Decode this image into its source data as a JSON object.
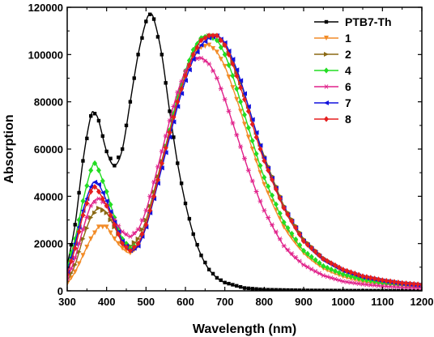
{
  "chart_data": {
    "type": "line",
    "xlabel": "Wavelength (nm)",
    "ylabel": "Absorption",
    "xlim": [
      300,
      1200
    ],
    "ylim": [
      0,
      120000
    ],
    "x_ticks": [
      300,
      400,
      500,
      600,
      700,
      800,
      900,
      1000,
      1100,
      1200
    ],
    "y_ticks": [
      0,
      20000,
      40000,
      60000,
      80000,
      100000,
      120000
    ],
    "x_tick_labels": [
      "300",
      "400",
      "500",
      "600",
      "700",
      "800",
      "900",
      "1000",
      "1100",
      "1200"
    ],
    "y_tick_labels": [
      "0",
      "20000",
      "40000",
      "60000",
      "80000",
      "100000",
      "120000"
    ],
    "legend_position": "top-right",
    "grid": false,
    "series": [
      {
        "name": "PTB7-Th",
        "color": "#000000",
        "marker": "square",
        "points": [
          [
            300,
            11000
          ],
          [
            320,
            28000
          ],
          [
            340,
            55000
          ],
          [
            360,
            74000
          ],
          [
            370,
            75000
          ],
          [
            380,
            72000
          ],
          [
            400,
            59000
          ],
          [
            420,
            53000
          ],
          [
            440,
            60000
          ],
          [
            460,
            80000
          ],
          [
            480,
            100000
          ],
          [
            500,
            114000
          ],
          [
            510,
            117000
          ],
          [
            520,
            115000
          ],
          [
            540,
            100000
          ],
          [
            560,
            76000
          ],
          [
            580,
            54000
          ],
          [
            600,
            37000
          ],
          [
            620,
            24000
          ],
          [
            640,
            15000
          ],
          [
            660,
            9000
          ],
          [
            680,
            5500
          ],
          [
            700,
            3500
          ],
          [
            750,
            1200
          ],
          [
            800,
            500
          ],
          [
            900,
            200
          ],
          [
            1000,
            100
          ],
          [
            1100,
            50
          ],
          [
            1200,
            0
          ]
        ]
      },
      {
        "name": "1",
        "color": "#F28C28",
        "marker": "triangle-down",
        "points": [
          [
            300,
            3000
          ],
          [
            320,
            8000
          ],
          [
            340,
            15000
          ],
          [
            360,
            22000
          ],
          [
            380,
            27000
          ],
          [
            400,
            27000
          ],
          [
            420,
            22000
          ],
          [
            440,
            18000
          ],
          [
            460,
            16000
          ],
          [
            480,
            19000
          ],
          [
            500,
            27000
          ],
          [
            520,
            39000
          ],
          [
            540,
            53000
          ],
          [
            560,
            67000
          ],
          [
            580,
            80000
          ],
          [
            600,
            91000
          ],
          [
            620,
            99000
          ],
          [
            640,
            103000
          ],
          [
            660,
            104000
          ],
          [
            680,
            101000
          ],
          [
            700,
            95000
          ],
          [
            720,
            86000
          ],
          [
            740,
            76000
          ],
          [
            760,
            65000
          ],
          [
            780,
            55000
          ],
          [
            800,
            45000
          ],
          [
            850,
            27000
          ],
          [
            900,
            16000
          ],
          [
            950,
            9500
          ],
          [
            1000,
            6000
          ],
          [
            1050,
            4000
          ],
          [
            1100,
            3000
          ],
          [
            1150,
            2200
          ],
          [
            1200,
            1500
          ]
        ]
      },
      {
        "name": "2",
        "color": "#8B6914",
        "marker": "triangle-right",
        "points": [
          [
            300,
            4000
          ],
          [
            320,
            11000
          ],
          [
            340,
            22000
          ],
          [
            360,
            31000
          ],
          [
            380,
            35000
          ],
          [
            400,
            33000
          ],
          [
            420,
            27000
          ],
          [
            440,
            21000
          ],
          [
            460,
            19000
          ],
          [
            480,
            22000
          ],
          [
            500,
            30000
          ],
          [
            520,
            42000
          ],
          [
            540,
            55000
          ],
          [
            560,
            68000
          ],
          [
            580,
            80000
          ],
          [
            600,
            91000
          ],
          [
            620,
            100000
          ],
          [
            640,
            106000
          ],
          [
            660,
            108000
          ],
          [
            680,
            108000
          ],
          [
            700,
            104000
          ],
          [
            720,
            97000
          ],
          [
            740,
            88000
          ],
          [
            760,
            78000
          ],
          [
            780,
            67000
          ],
          [
            800,
            57000
          ],
          [
            850,
            36000
          ],
          [
            900,
            22000
          ],
          [
            950,
            14000
          ],
          [
            1000,
            9000
          ],
          [
            1050,
            6000
          ],
          [
            1100,
            4500
          ],
          [
            1150,
            3200
          ],
          [
            1200,
            2500
          ]
        ]
      },
      {
        "name": "4",
        "color": "#22DD22",
        "marker": "diamond",
        "points": [
          [
            300,
            10000
          ],
          [
            320,
            22000
          ],
          [
            340,
            38000
          ],
          [
            360,
            51000
          ],
          [
            370,
            54000
          ],
          [
            380,
            51000
          ],
          [
            400,
            42000
          ],
          [
            420,
            31000
          ],
          [
            440,
            22000
          ],
          [
            460,
            18000
          ],
          [
            480,
            20000
          ],
          [
            500,
            28000
          ],
          [
            520,
            40000
          ],
          [
            540,
            54000
          ],
          [
            560,
            68000
          ],
          [
            580,
            82000
          ],
          [
            600,
            93000
          ],
          [
            620,
            102000
          ],
          [
            640,
            107000
          ],
          [
            660,
            108000
          ],
          [
            680,
            106000
          ],
          [
            700,
            100000
          ],
          [
            720,
            91000
          ],
          [
            740,
            80000
          ],
          [
            760,
            69000
          ],
          [
            780,
            58000
          ],
          [
            800,
            48000
          ],
          [
            850,
            29000
          ],
          [
            900,
            17000
          ],
          [
            950,
            10500
          ],
          [
            1000,
            7000
          ],
          [
            1050,
            4800
          ],
          [
            1100,
            3500
          ],
          [
            1150,
            2600
          ],
          [
            1200,
            2000
          ]
        ]
      },
      {
        "name": "6",
        "color": "#E0208A",
        "marker": "star",
        "points": [
          [
            300,
            5000
          ],
          [
            320,
            14000
          ],
          [
            340,
            26000
          ],
          [
            360,
            36000
          ],
          [
            380,
            39000
          ],
          [
            400,
            36000
          ],
          [
            420,
            30000
          ],
          [
            440,
            25000
          ],
          [
            460,
            23000
          ],
          [
            480,
            26000
          ],
          [
            500,
            34000
          ],
          [
            520,
            46000
          ],
          [
            540,
            59000
          ],
          [
            560,
            72000
          ],
          [
            580,
            84000
          ],
          [
            600,
            93000
          ],
          [
            620,
            98000
          ],
          [
            640,
            98500
          ],
          [
            660,
            96000
          ],
          [
            680,
            90000
          ],
          [
            700,
            81000
          ],
          [
            720,
            71000
          ],
          [
            740,
            61000
          ],
          [
            760,
            51000
          ],
          [
            780,
            42000
          ],
          [
            800,
            34000
          ],
          [
            850,
            19000
          ],
          [
            900,
            11000
          ],
          [
            950,
            6500
          ],
          [
            1000,
            4000
          ],
          [
            1050,
            2800
          ],
          [
            1100,
            2000
          ],
          [
            1150,
            1500
          ],
          [
            1200,
            1200
          ]
        ]
      },
      {
        "name": "7",
        "color": "#1111DD",
        "marker": "triangle-left",
        "points": [
          [
            300,
            8000
          ],
          [
            320,
            20000
          ],
          [
            340,
            34000
          ],
          [
            360,
            44000
          ],
          [
            370,
            46000
          ],
          [
            380,
            45000
          ],
          [
            400,
            38000
          ],
          [
            420,
            29000
          ],
          [
            440,
            21000
          ],
          [
            460,
            17000
          ],
          [
            480,
            19000
          ],
          [
            500,
            27000
          ],
          [
            520,
            39000
          ],
          [
            540,
            52000
          ],
          [
            560,
            65000
          ],
          [
            580,
            78000
          ],
          [
            600,
            89000
          ],
          [
            620,
            98000
          ],
          [
            640,
            104000
          ],
          [
            660,
            107000
          ],
          [
            680,
            108000
          ],
          [
            700,
            105000
          ],
          [
            720,
            98000
          ],
          [
            740,
            89000
          ],
          [
            760,
            78000
          ],
          [
            780,
            67000
          ],
          [
            800,
            56000
          ],
          [
            850,
            35000
          ],
          [
            900,
            21000
          ],
          [
            950,
            13000
          ],
          [
            1000,
            8500
          ],
          [
            1050,
            5800
          ],
          [
            1100,
            4200
          ],
          [
            1150,
            3000
          ],
          [
            1200,
            2300
          ]
        ]
      },
      {
        "name": "8",
        "color": "#E51E1E",
        "marker": "diamond",
        "points": [
          [
            300,
            7000
          ],
          [
            320,
            18000
          ],
          [
            340,
            32000
          ],
          [
            360,
            42000
          ],
          [
            370,
            44000
          ],
          [
            380,
            42000
          ],
          [
            400,
            36000
          ],
          [
            420,
            28000
          ],
          [
            440,
            20000
          ],
          [
            460,
            17000
          ],
          [
            480,
            20000
          ],
          [
            500,
            28000
          ],
          [
            520,
            40000
          ],
          [
            540,
            54000
          ],
          [
            560,
            67000
          ],
          [
            580,
            80000
          ],
          [
            600,
            91000
          ],
          [
            620,
            100000
          ],
          [
            640,
            106000
          ],
          [
            660,
            108000
          ],
          [
            680,
            108000
          ],
          [
            700,
            104000
          ],
          [
            720,
            96000
          ],
          [
            740,
            86000
          ],
          [
            760,
            76000
          ],
          [
            780,
            65000
          ],
          [
            800,
            55000
          ],
          [
            850,
            35000
          ],
          [
            900,
            21000
          ],
          [
            950,
            13500
          ],
          [
            1000,
            9000
          ],
          [
            1050,
            6200
          ],
          [
            1100,
            4500
          ],
          [
            1150,
            3300
          ],
          [
            1200,
            2600
          ]
        ]
      }
    ]
  }
}
